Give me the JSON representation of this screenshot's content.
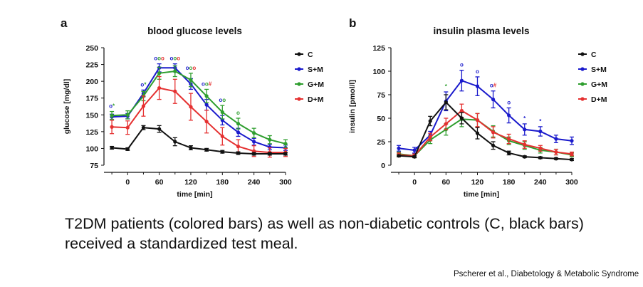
{
  "caption": "T2DM patients (colored bars) as well as non-diabetic controls (C, black bars) received a standardized test meal.",
  "citation": "Pscherer et al., Diabetology & Metabolic Syndrome",
  "chart_data": [
    {
      "type": "line",
      "panel": "a",
      "title": "blood glucose levels",
      "xlabel": "time [min]",
      "ylabel": "glucose [mg/dl]",
      "xlim": [
        -45,
        300
      ],
      "ylim": [
        75,
        250
      ],
      "xticks": [
        0,
        60,
        120,
        180,
        240,
        300
      ],
      "yticks": [
        75,
        100,
        125,
        150,
        175,
        200,
        225,
        250
      ],
      "legend_position": "right",
      "x": [
        -30,
        0,
        30,
        60,
        90,
        120,
        150,
        180,
        210,
        240,
        270,
        300
      ],
      "series": [
        {
          "name": "C",
          "color": "#111111",
          "values": [
            101,
            99,
            131,
            129,
            110,
            101,
            98,
            95,
            93,
            92,
            92,
            92
          ],
          "errors": [
            2,
            2,
            3,
            5,
            6,
            3,
            2,
            2,
            2,
            2,
            2,
            2
          ]
        },
        {
          "name": "S+M",
          "color": "#1a1acc",
          "values": [
            147,
            148,
            182,
            220,
            220,
            196,
            165,
            142,
            124,
            110,
            102,
            101
          ],
          "errors": [
            4,
            4,
            5,
            6,
            6,
            8,
            8,
            7,
            6,
            5,
            4,
            4
          ]
        },
        {
          "name": "G+M",
          "color": "#2e9e2e",
          "values": [
            149,
            150,
            178,
            212,
            215,
            202,
            178,
            154,
            137,
            123,
            113,
            107
          ],
          "errors": [
            6,
            6,
            7,
            9,
            8,
            10,
            10,
            10,
            8,
            7,
            6,
            6
          ]
        },
        {
          "name": "D+M",
          "color": "#e53030",
          "values": [
            132,
            131,
            163,
            190,
            185,
            162,
            140,
            118,
            103,
            96,
            94,
            94
          ],
          "errors": [
            10,
            10,
            15,
            17,
            18,
            20,
            17,
            13,
            10,
            8,
            7,
            6
          ]
        }
      ],
      "annotations": [
        {
          "x": -30,
          "text": "o*",
          "colors": [
            "#1a1acc",
            "#2e9e2e"
          ]
        },
        {
          "x": 30,
          "text": "o*",
          "colors": [
            "#1a1acc",
            "#2e9e2e"
          ]
        },
        {
          "x": 60,
          "text": "ooo",
          "colors": [
            "#1a1acc",
            "#2e9e2e",
            "#e53030"
          ]
        },
        {
          "x": 90,
          "text": "ooo",
          "colors": [
            "#1a1acc",
            "#2e9e2e",
            "#e53030"
          ]
        },
        {
          "x": 120,
          "text": "ooo",
          "colors": [
            "#1a1acc",
            "#2e9e2e",
            "#e53030"
          ]
        },
        {
          "x": 150,
          "text": "oo#",
          "colors": [
            "#1a1acc",
            "#2e9e2e",
            "#e53030"
          ]
        },
        {
          "x": 180,
          "text": "oo",
          "colors": [
            "#1a1acc",
            "#2e9e2e"
          ]
        },
        {
          "x": 210,
          "text": "o",
          "colors": [
            "#2e9e2e"
          ]
        }
      ]
    },
    {
      "type": "line",
      "panel": "b",
      "title": "insulin plasma levels",
      "xlabel": "time [min]",
      "ylabel": "insulin [pmol/l]",
      "xlim": [
        -45,
        300
      ],
      "ylim": [
        0,
        125
      ],
      "xticks": [
        0,
        60,
        120,
        180,
        240,
        300
      ],
      "yticks": [
        0,
        25,
        50,
        75,
        100,
        125
      ],
      "legend_position": "right",
      "x": [
        -30,
        0,
        30,
        60,
        90,
        120,
        150,
        180,
        210,
        240,
        270,
        300
      ],
      "series": [
        {
          "name": "C",
          "color": "#111111",
          "values": [
            10,
            9,
            47,
            67,
            50,
            34,
            21,
            13,
            9,
            8,
            7,
            6
          ],
          "errors": [
            1,
            1,
            5,
            8,
            6,
            6,
            4,
            2,
            1,
            1,
            1,
            1
          ]
        },
        {
          "name": "S+M",
          "color": "#1a1acc",
          "values": [
            18,
            16,
            32,
            68,
            90,
            84,
            70,
            53,
            38,
            36,
            28,
            26
          ],
          "errors": [
            3,
            3,
            4,
            10,
            11,
            10,
            9,
            8,
            6,
            5,
            4,
            4
          ]
        },
        {
          "name": "G+M",
          "color": "#2e9e2e",
          "values": [
            12,
            10,
            27,
            38,
            49,
            48,
            36,
            26,
            21,
            16,
            14,
            11
          ],
          "errors": [
            2,
            2,
            4,
            6,
            8,
            7,
            6,
            4,
            4,
            3,
            3,
            2
          ]
        },
        {
          "name": "D+M",
          "color": "#e53030",
          "values": [
            11,
            10,
            30,
            44,
            58,
            48,
            35,
            28,
            22,
            18,
            14,
            12
          ],
          "errors": [
            2,
            2,
            4,
            6,
            7,
            7,
            6,
            5,
            4,
            3,
            3,
            2
          ]
        }
      ],
      "annotations": [
        {
          "x": 60,
          "text": "*",
          "colors": [
            "#2e9e2e"
          ]
        },
        {
          "x": 90,
          "text": "o",
          "colors": [
            "#1a1acc"
          ]
        },
        {
          "x": 120,
          "text": "o",
          "colors": [
            "#1a1acc"
          ]
        },
        {
          "x": 150,
          "text": "o#",
          "colors": [
            "#1a1acc",
            "#e53030"
          ]
        },
        {
          "x": 180,
          "text": "o",
          "colors": [
            "#1a1acc"
          ]
        },
        {
          "x": 210,
          "text": "*",
          "colors": [
            "#1a1acc"
          ]
        },
        {
          "x": 240,
          "text": "*",
          "colors": [
            "#1a1acc"
          ]
        }
      ]
    }
  ]
}
